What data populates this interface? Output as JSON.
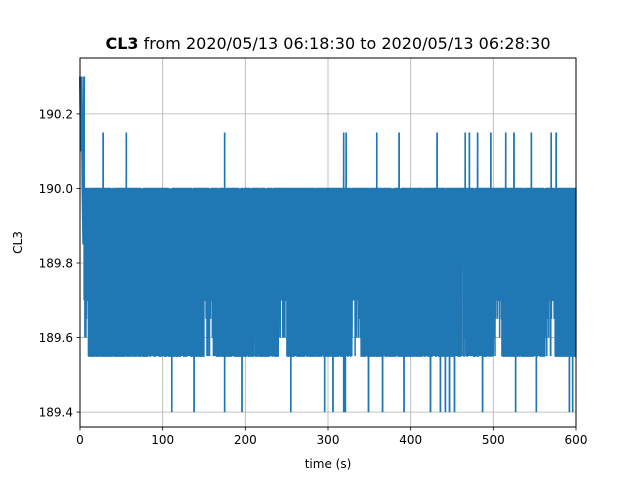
{
  "chart_data": {
    "type": "line",
    "title": {
      "series_name": "CL3",
      "rest": " from 2020/05/13 06:18:30 to 2020/05/13 06:28:30"
    },
    "xlabel": "time (s)",
    "ylabel": "CL3",
    "xlim": [
      0,
      600
    ],
    "ylim": [
      189.36,
      190.35
    ],
    "xticks": [
      0,
      100,
      200,
      300,
      400,
      500,
      600
    ],
    "xtick_labels": [
      "0",
      "100",
      "200",
      "300",
      "400",
      "500",
      "600"
    ],
    "yticks": [
      189.4,
      189.6,
      189.8,
      190.0,
      190.2
    ],
    "ytick_labels": [
      "189.4",
      "189.6",
      "189.8",
      "190.0",
      "190.2"
    ],
    "grid": true,
    "legend": "none",
    "color": "#1f77b4",
    "series": [
      {
        "sample_interval_s": 0.1,
        "band_low": 189.55,
        "band_high": 190.0,
        "levels": [
          189.55,
          189.6,
          189.65,
          189.7,
          189.75,
          189.8,
          189.85,
          189.9,
          189.95,
          190.0
        ],
        "initial_segment": {
          "x": [
            0,
            1,
            2,
            3,
            4,
            5
          ],
          "y": [
            190.3,
            190.1,
            190.3,
            190.0,
            189.85,
            190.3
          ]
        },
        "spikes_high": [
          {
            "x": 5,
            "y": 190.15
          },
          {
            "x": 28,
            "y": 190.15
          },
          {
            "x": 56,
            "y": 190.15
          },
          {
            "x": 175,
            "y": 190.15
          },
          {
            "x": 319,
            "y": 190.15
          },
          {
            "x": 322,
            "y": 190.15
          },
          {
            "x": 359,
            "y": 190.15
          },
          {
            "x": 386,
            "y": 190.15
          },
          {
            "x": 432,
            "y": 190.15
          },
          {
            "x": 466,
            "y": 190.15
          },
          {
            "x": 471,
            "y": 190.15
          },
          {
            "x": 481,
            "y": 190.15
          },
          {
            "x": 497,
            "y": 190.15
          },
          {
            "x": 515,
            "y": 190.15
          },
          {
            "x": 525,
            "y": 190.15
          },
          {
            "x": 546,
            "y": 190.15
          },
          {
            "x": 570,
            "y": 190.15
          },
          {
            "x": 576,
            "y": 190.15
          }
        ],
        "spikes_low": [
          {
            "x": 111,
            "y": 189.4
          },
          {
            "x": 138,
            "y": 189.4
          },
          {
            "x": 175,
            "y": 189.4
          },
          {
            "x": 196,
            "y": 189.4
          },
          {
            "x": 255,
            "y": 189.4
          },
          {
            "x": 296,
            "y": 189.4
          },
          {
            "x": 306,
            "y": 189.4
          },
          {
            "x": 319,
            "y": 189.4
          },
          {
            "x": 321,
            "y": 189.4
          },
          {
            "x": 349,
            "y": 189.4
          },
          {
            "x": 366,
            "y": 189.4
          },
          {
            "x": 392,
            "y": 189.4
          },
          {
            "x": 424,
            "y": 189.4
          },
          {
            "x": 436,
            "y": 189.4
          },
          {
            "x": 442,
            "y": 189.4
          },
          {
            "x": 447,
            "y": 189.4
          },
          {
            "x": 453,
            "y": 189.4
          },
          {
            "x": 487,
            "y": 189.4
          },
          {
            "x": 527,
            "y": 189.4
          },
          {
            "x": 552,
            "y": 189.4
          },
          {
            "x": 592,
            "y": 189.4
          },
          {
            "x": 596,
            "y": 189.4
          }
        ],
        "dense_low_gaps": [
          [
            5,
            10
          ],
          [
            150,
            165
          ],
          [
            240,
            250
          ],
          [
            325,
            340
          ],
          [
            500,
            510
          ],
          [
            562,
            575
          ]
        ]
      }
    ]
  }
}
